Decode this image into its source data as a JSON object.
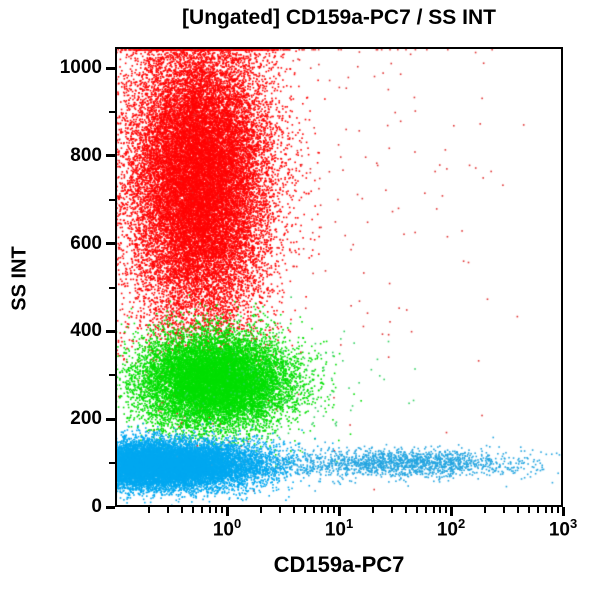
{
  "chart_data": {
    "type": "scatter",
    "variant": "flow-cytometry-dot-plot",
    "title": "[Ungated] CD159a-PC7 / SS INT",
    "xlabel": "CD159a-PC7",
    "ylabel": "SS INT",
    "x_scale": "log",
    "x_range": [
      0.1,
      1000
    ],
    "y_scale": "linear",
    "y_range": [
      0,
      1048
    ],
    "grid": false,
    "legend": "none",
    "frame_color": "#000000",
    "text_color": "#000000",
    "background_color": "#ffffff",
    "x_major_ticks": [
      {
        "value": 1,
        "base": "10",
        "exp": "0"
      },
      {
        "value": 10,
        "base": "10",
        "exp": "1"
      },
      {
        "value": 100,
        "base": "10",
        "exp": "2"
      },
      {
        "value": 1000,
        "base": "10",
        "exp": "3"
      }
    ],
    "x_minor_ticks": [
      0.2,
      0.3,
      0.4,
      0.5,
      0.6,
      0.7,
      0.8,
      0.9,
      2,
      3,
      4,
      5,
      6,
      7,
      8,
      9,
      20,
      30,
      40,
      50,
      60,
      70,
      80,
      90,
      200,
      300,
      400,
      500,
      600,
      700,
      800,
      900
    ],
    "y_major_ticks": [
      {
        "value": 0,
        "label": "0"
      },
      {
        "value": 200,
        "label": "200"
      },
      {
        "value": 400,
        "label": "400"
      },
      {
        "value": 600,
        "label": "600"
      },
      {
        "value": 800,
        "label": "800"
      },
      {
        "value": 1000,
        "label": "1000"
      }
    ],
    "y_minor_ticks": [
      100,
      300,
      500,
      700,
      900
    ],
    "populations": [
      {
        "name": "red-high-ssc-cloud",
        "color": "#ff0505",
        "count": 24000,
        "x_log_mean": -0.25,
        "x_log_sigma": 0.32,
        "y_mean": 750,
        "y_sigma": 170
      },
      {
        "name": "red-sparse-scatter",
        "color": "#e03030",
        "count": 280,
        "x_log_mean": 0.5,
        "x_log_sigma": 1.1,
        "y_mean": 750,
        "y_sigma": 280
      },
      {
        "name": "green-mid-ssc-cloud",
        "color": "#00df00",
        "count": 13000,
        "x_log_mean": -0.11,
        "x_log_sigma": 0.34,
        "y_mean": 286,
        "y_sigma": 53
      },
      {
        "name": "green-sparse-scatter",
        "color": "#30d060",
        "count": 150,
        "x_log_mean": 0.4,
        "x_log_sigma": 0.5,
        "y_mean": 265,
        "y_sigma": 70
      },
      {
        "name": "blue-low-ssc-band",
        "color": "#00a8f0",
        "count": 16000,
        "x_log_mean": -0.6,
        "x_log_sigma": 0.45,
        "y_mean": 95,
        "y_sigma": 27
      },
      {
        "name": "blue-positive-tail",
        "color": "#25a5e0",
        "count": 1700,
        "x_log_mean": 1.55,
        "x_log_sigma": 0.55,
        "y_mean": 100,
        "y_sigma": 16
      }
    ],
    "render": {
      "seed": 11,
      "point_size": 1.6
    }
  }
}
